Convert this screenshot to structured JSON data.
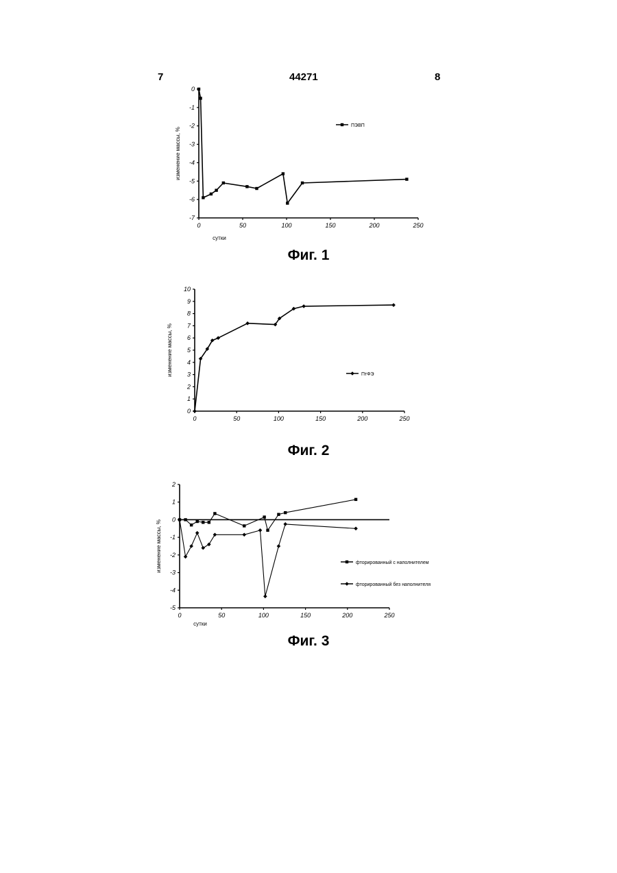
{
  "header": {
    "left": "7",
    "center": "44271",
    "right": "8"
  },
  "captions": [
    "Фиг. 1",
    "Фиг. 2",
    "Фиг. 3"
  ],
  "chart_data": [
    {
      "type": "line",
      "xlabel": "сутки",
      "ylabel": "изменение массы, %",
      "xlim": [
        0,
        250
      ],
      "ylim": [
        -7,
        0
      ],
      "xticks": [
        "0",
        "50",
        "100",
        "150",
        "200",
        "250"
      ],
      "yticks": [
        "0",
        "-1",
        "-2",
        "-3",
        "-4",
        "-5",
        "-6",
        "-7"
      ],
      "series": [
        {
          "name": "ПЭВП",
          "marker": "square",
          "x": [
            0,
            2,
            5,
            14,
            20,
            28,
            55,
            66,
            96,
            101,
            118,
            237
          ],
          "y": [
            0,
            -0.5,
            -5.9,
            -5.7,
            -5.5,
            -5.1,
            -5.3,
            -5.4,
            -4.6,
            -6.2,
            -5.1,
            -4.9
          ]
        }
      ],
      "legend": "right"
    },
    {
      "type": "line",
      "xlabel": "",
      "ylabel": "изменение массы, %",
      "xlim": [
        0,
        250
      ],
      "ylim": [
        0,
        10
      ],
      "xticks": [
        "0",
        "50",
        "100",
        "150",
        "200",
        "250"
      ],
      "yticks": [
        "0",
        "1",
        "2",
        "3",
        "4",
        "5",
        "6",
        "7",
        "8",
        "9",
        "10"
      ],
      "series": [
        {
          "name": "ПтФЭ",
          "marker": "diamond",
          "x": [
            0,
            7,
            15,
            21,
            28,
            63,
            96,
            101,
            118,
            130,
            237
          ],
          "y": [
            0,
            4.3,
            5.1,
            5.8,
            6.0,
            7.2,
            7.1,
            7.6,
            8.4,
            8.6,
            8.7
          ]
        }
      ],
      "legend": "right"
    },
    {
      "type": "line",
      "xlabel": "сутки",
      "ylabel": "изменение массы, %",
      "xlim": [
        0,
        250
      ],
      "ylim": [
        -5,
        2
      ],
      "xticks": [
        "0",
        "50",
        "100",
        "150",
        "200",
        "250"
      ],
      "yticks": [
        "2",
        "1",
        "0",
        "-1",
        "-2",
        "-3",
        "-4",
        "-5"
      ],
      "series": [
        {
          "name": "фторированный с наполнителем",
          "marker": "square",
          "x": [
            0,
            7,
            14,
            21,
            28,
            35,
            42,
            77,
            101,
            105,
            118,
            126,
            210
          ],
          "y": [
            0,
            0,
            -0.3,
            -0.1,
            -0.15,
            -0.15,
            0.35,
            -0.35,
            0.15,
            -0.6,
            0.3,
            0.4,
            1.15
          ]
        },
        {
          "name": "фторированный без наполнителя",
          "marker": "diamond",
          "x": [
            0,
            7,
            14,
            21,
            28,
            35,
            42,
            77,
            96,
            102,
            118,
            126,
            210
          ],
          "y": [
            0,
            -2.1,
            -1.5,
            -0.75,
            -1.6,
            -1.4,
            -0.85,
            -0.85,
            -0.6,
            -4.35,
            -1.5,
            -0.25,
            -0.5
          ]
        }
      ],
      "legend": "right"
    }
  ]
}
